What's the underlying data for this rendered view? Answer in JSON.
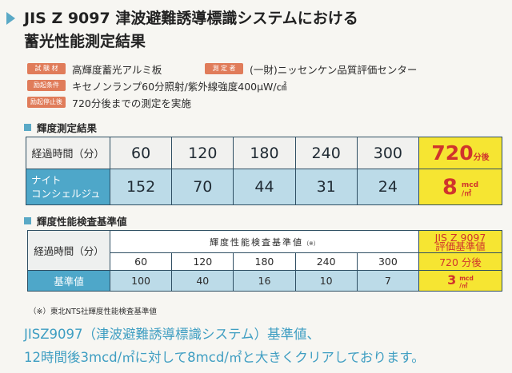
{
  "title": {
    "line1": "JIS Z 9097 津波避難誘導標識システムにおける",
    "line2": "蓄光性能測定結果"
  },
  "info": [
    {
      "badge": "試 験 材",
      "text": "高輝度蓄光アルミ板"
    },
    {
      "badge": "測 定 者",
      "text": "(一財)ニッセンケン品質評価センター"
    },
    {
      "badge": "励起条件",
      "text": "キセノンランプ60分照射/紫外線強度400μW/㎠"
    },
    {
      "badge": "励起停止後",
      "text": "720分後までの測定を実施"
    }
  ],
  "section1": {
    "title": "輝度測定結果"
  },
  "table1": {
    "header_label": "経過時間（分）",
    "times": [
      "60",
      "120",
      "180",
      "240",
      "300"
    ],
    "highlight_time": "720",
    "highlight_time_unit": "分後",
    "product_label_1": "ナイト",
    "product_label_2": "コンシェルジュ",
    "values": [
      "152",
      "70",
      "44",
      "31",
      "24"
    ],
    "highlight_value": "8",
    "highlight_unit_top": "mcd",
    "highlight_unit_bottom": "/㎡"
  },
  "section2": {
    "title": "輝度性能検査基準値"
  },
  "table2": {
    "header_label": "経過時間（分）",
    "group_title": "輝度性能検査基準値",
    "group_title_note": "（※）",
    "jis_head_1": "JIS Z 9097",
    "jis_head_2": "評価基準値",
    "times": [
      "60",
      "120",
      "180",
      "240",
      "300"
    ],
    "highlight_time": "720 分後",
    "row_label": "基準値",
    "values": [
      "100",
      "40",
      "16",
      "10",
      "7"
    ],
    "highlight_value": "3",
    "highlight_unit_top": "mcd",
    "highlight_unit_bottom": "/㎡"
  },
  "footnote": "（※）東北NTS社輝度性能検査基準値",
  "summary": {
    "line1": "JISZ9097（津波避難誘導標識システム）基準値、",
    "line2": "12時間後3mcd/㎡に対して8mcd/㎡と大きくクリアしております。"
  },
  "colors": {
    "accent_blue": "#4ea7c9",
    "light_blue": "#bcdbe8",
    "highlight_yellow": "#f6e532",
    "highlight_red": "#d0342c",
    "badge_orange": "#e07c5a"
  }
}
